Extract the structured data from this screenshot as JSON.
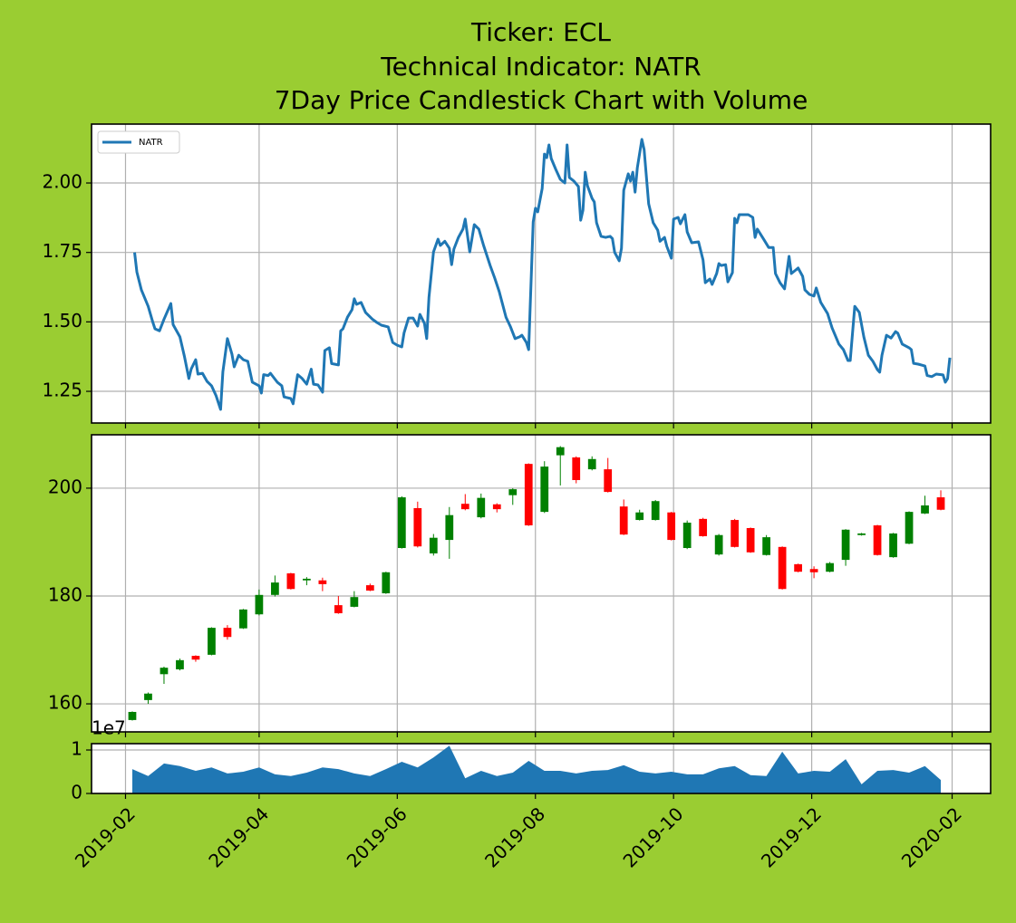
{
  "title": [
    "Ticker: ECL",
    "Technical Indicator: NATR",
    "7Day Price Candlestick Chart with Volume"
  ],
  "chart_data": [
    {
      "type": "line",
      "x": [
        "2019-02-05",
        "2019-02-06",
        "2019-02-08",
        "2019-02-11",
        "2019-02-13",
        "2019-02-14",
        "2019-02-16",
        "2019-02-18",
        "2019-02-21",
        "2019-02-22",
        "2019-02-25",
        "2019-02-27",
        "2019-03-01",
        "2019-03-02",
        "2019-03-04",
        "2019-03-05",
        "2019-03-07",
        "2019-03-09",
        "2019-03-11",
        "2019-03-13",
        "2019-03-15",
        "2019-03-16",
        "2019-03-18",
        "2019-03-20",
        "2019-03-21",
        "2019-03-23",
        "2019-03-25",
        "2019-03-27",
        "2019-03-29",
        "2019-04-01",
        "2019-04-02",
        "2019-04-03",
        "2019-04-05",
        "2019-04-06",
        "2019-04-09",
        "2019-04-11",
        "2019-04-12",
        "2019-04-15",
        "2019-04-16",
        "2019-04-18",
        "2019-04-20",
        "2019-04-22",
        "2019-04-24",
        "2019-04-25",
        "2019-04-27",
        "2019-04-29",
        "2019-04-30",
        "2019-05-02",
        "2019-05-03",
        "2019-05-06",
        "2019-05-07",
        "2019-05-08",
        "2019-05-10",
        "2019-05-12",
        "2019-05-13",
        "2019-05-14",
        "2019-05-16",
        "2019-05-18",
        "2019-05-21",
        "2019-05-23",
        "2019-05-25",
        "2019-05-28",
        "2019-05-30",
        "2019-06-01",
        "2019-06-03",
        "2019-06-04",
        "2019-06-06",
        "2019-06-08",
        "2019-06-10",
        "2019-06-11",
        "2019-06-13",
        "2019-06-14",
        "2019-06-15",
        "2019-06-17",
        "2019-06-19",
        "2019-06-20",
        "2019-06-22",
        "2019-06-24",
        "2019-06-25",
        "2019-06-26",
        "2019-06-28",
        "2019-06-30",
        "2019-07-01",
        "2019-07-03",
        "2019-07-05",
        "2019-07-07",
        "2019-07-09",
        "2019-07-12",
        "2019-07-14",
        "2019-07-16",
        "2019-07-19",
        "2019-07-21",
        "2019-07-23",
        "2019-07-25",
        "2019-07-26",
        "2019-07-28",
        "2019-07-29",
        "2019-07-31",
        "2019-08-01",
        "2019-08-02",
        "2019-08-04",
        "2019-08-05",
        "2019-08-06",
        "2019-08-07",
        "2019-08-08",
        "2019-08-10",
        "2019-08-12",
        "2019-08-14",
        "2019-08-15",
        "2019-08-16",
        "2019-08-18",
        "2019-08-20",
        "2019-08-21",
        "2019-08-22",
        "2019-08-23",
        "2019-08-24",
        "2019-08-26",
        "2019-08-27",
        "2019-08-28",
        "2019-08-30",
        "2019-09-01",
        "2019-09-03",
        "2019-09-04",
        "2019-09-05",
        "2019-09-07",
        "2019-09-08",
        "2019-09-09",
        "2019-09-11",
        "2019-09-12",
        "2019-09-13",
        "2019-09-14",
        "2019-09-15",
        "2019-09-17",
        "2019-09-18",
        "2019-09-20",
        "2019-09-22",
        "2019-09-24",
        "2019-09-25",
        "2019-09-27",
        "2019-09-28",
        "2019-09-30",
        "2019-10-01",
        "2019-10-03",
        "2019-10-04",
        "2019-10-06",
        "2019-10-07",
        "2019-10-09",
        "2019-10-12",
        "2019-10-14",
        "2019-10-15",
        "2019-10-17",
        "2019-10-18",
        "2019-10-20",
        "2019-10-21",
        "2019-10-22",
        "2019-10-24",
        "2019-10-25",
        "2019-10-27",
        "2019-10-28",
        "2019-10-29",
        "2019-10-30",
        "2019-11-03",
        "2019-11-05",
        "2019-11-06",
        "2019-11-07",
        "2019-11-10",
        "2019-11-12",
        "2019-11-14",
        "2019-11-15",
        "2019-11-17",
        "2019-11-19",
        "2019-11-21",
        "2019-11-22",
        "2019-11-24",
        "2019-11-25",
        "2019-11-27",
        "2019-11-28",
        "2019-11-30",
        "2019-12-02",
        "2019-12-03",
        "2019-12-05",
        "2019-12-08",
        "2019-12-10",
        "2019-12-13",
        "2019-12-15",
        "2019-12-17",
        "2019-12-18",
        "2019-12-20",
        "2019-12-22",
        "2019-12-24",
        "2019-12-26",
        "2019-12-28",
        "2019-12-30",
        "2019-12-31",
        "2020-01-01",
        "2020-01-03",
        "2020-01-05",
        "2020-01-07",
        "2020-01-08",
        "2020-01-10",
        "2020-01-13",
        "2020-01-14",
        "2020-01-15",
        "2020-01-17",
        "2020-01-20",
        "2020-01-21",
        "2020-01-23",
        "2020-01-25",
        "2020-01-28",
        "2020-01-29",
        "2020-01-30",
        "2020-01-31"
      ],
      "series": [
        {
          "name": "NATR",
          "color": "#1f77b4",
          "values": [
            1.75,
            1.68,
            1.615,
            1.556,
            1.5,
            1.475,
            1.468,
            1.51,
            1.566,
            1.49,
            1.446,
            1.377,
            1.296,
            1.33,
            1.364,
            1.312,
            1.315,
            1.286,
            1.27,
            1.234,
            1.185,
            1.32,
            1.44,
            1.384,
            1.338,
            1.38,
            1.364,
            1.358,
            1.283,
            1.27,
            1.244,
            1.31,
            1.307,
            1.315,
            1.283,
            1.27,
            1.23,
            1.224,
            1.205,
            1.31,
            1.296,
            1.276,
            1.33,
            1.276,
            1.273,
            1.247,
            1.397,
            1.407,
            1.35,
            1.345,
            1.468,
            1.475,
            1.517,
            1.544,
            1.583,
            1.563,
            1.57,
            1.534,
            1.51,
            1.498,
            1.488,
            1.482,
            1.426,
            1.416,
            1.41,
            1.46,
            1.514,
            1.514,
            1.485,
            1.527,
            1.495,
            1.44,
            1.589,
            1.752,
            1.798,
            1.775,
            1.79,
            1.765,
            1.706,
            1.762,
            1.804,
            1.834,
            1.87,
            1.752,
            1.85,
            1.834,
            1.778,
            1.703,
            1.658,
            1.609,
            1.517,
            1.482,
            1.44,
            1.446,
            1.452,
            1.426,
            1.4,
            1.86,
            1.909,
            1.896,
            1.98,
            2.104,
            2.091,
            2.137,
            2.088,
            2.049,
            2.013,
            2.0,
            2.137,
            2.02,
            2.007,
            1.987,
            1.866,
            1.902,
            2.039,
            1.99,
            1.945,
            1.932,
            1.857,
            1.808,
            1.804,
            1.808,
            1.8,
            1.75,
            1.72,
            1.765,
            1.974,
            2.033,
            2.007,
            2.039,
            1.967,
            2.055,
            2.157,
            2.12,
            1.925,
            1.857,
            1.83,
            1.79,
            1.804,
            1.772,
            1.729,
            1.87,
            1.876,
            1.853,
            1.886,
            1.824,
            1.785,
            1.788,
            1.723,
            1.641,
            1.654,
            1.635,
            1.674,
            1.71,
            1.703,
            1.706,
            1.644,
            1.677,
            1.873,
            1.857,
            1.886,
            1.886,
            1.876,
            1.804,
            1.834,
            1.795,
            1.768,
            1.768,
            1.674,
            1.641,
            1.619,
            1.736,
            1.674,
            1.687,
            1.694,
            1.664,
            1.615,
            1.599,
            1.593,
            1.622,
            1.57,
            1.53,
            1.478,
            1.42,
            1.4,
            1.361,
            1.361,
            1.556,
            1.534,
            1.446,
            1.38,
            1.358,
            1.328,
            1.319,
            1.38,
            1.452,
            1.442,
            1.465,
            1.459,
            1.42,
            1.407,
            1.4,
            1.351,
            1.348,
            1.341,
            1.307,
            1.303,
            1.312,
            1.309,
            1.283,
            1.296,
            1.371
          ]
        }
      ],
      "ylim": [
        1.136,
        2.212
      ],
      "yticks": [
        {
          "value": 1.25,
          "label": "1.25"
        },
        {
          "value": 1.5,
          "label": "1.50"
        },
        {
          "value": 1.75,
          "label": "1.75"
        },
        {
          "value": 2,
          "label": "2.00"
        }
      ],
      "grid": true,
      "legend": "upper left"
    },
    {
      "type": "candlestick",
      "x": [
        "2019-02-04",
        "2019-02-11",
        "2019-02-18",
        "2019-02-25",
        "2019-03-04",
        "2019-03-11",
        "2019-03-18",
        "2019-03-25",
        "2019-04-01",
        "2019-04-08",
        "2019-04-15",
        "2019-04-22",
        "2019-04-29",
        "2019-05-06",
        "2019-05-13",
        "2019-05-20",
        "2019-05-27",
        "2019-06-03",
        "2019-06-10",
        "2019-06-17",
        "2019-06-24",
        "2019-07-01",
        "2019-07-08",
        "2019-07-15",
        "2019-07-22",
        "2019-07-29",
        "2019-08-05",
        "2019-08-12",
        "2019-08-19",
        "2019-08-26",
        "2019-09-02",
        "2019-09-09",
        "2019-09-16",
        "2019-09-23",
        "2019-09-30",
        "2019-10-07",
        "2019-10-14",
        "2019-10-21",
        "2019-10-28",
        "2019-11-04",
        "2019-11-11",
        "2019-11-18",
        "2019-11-25",
        "2019-12-02",
        "2019-12-09",
        "2019-12-16",
        "2019-12-23",
        "2019-12-30",
        "2020-01-06",
        "2020-01-13",
        "2020-01-20",
        "2020-01-27"
      ],
      "open": [
        157.0,
        160.7,
        165.5,
        166.4,
        168.9,
        169.1,
        174.1,
        174.0,
        176.6,
        180.2,
        184.2,
        182.9,
        182.9,
        178.3,
        178.0,
        182.0,
        180.5,
        188.9,
        196.3,
        187.9,
        190.4,
        197.1,
        194.6,
        197.0,
        198.7,
        204.5,
        195.6,
        206.1,
        205.7,
        203.5,
        203.5,
        196.6,
        194.1,
        194.1,
        195.5,
        188.9,
        194.3,
        187.7,
        194.1,
        192.6,
        187.6,
        189.1,
        185.9,
        185.0,
        184.5,
        186.7,
        191.3,
        193.1,
        187.2,
        189.7,
        195.3,
        198.3
      ],
      "high": [
        158.6,
        162.1,
        166.9,
        168.4,
        169.0,
        174.2,
        174.6,
        177.6,
        181.2,
        183.8,
        184.3,
        183.5,
        183.4,
        180.0,
        180.9,
        182.3,
        184.5,
        198.5,
        197.5,
        191.5,
        196.5,
        198.9,
        199.0,
        197.2,
        200.0,
        204.6,
        205.0,
        207.8,
        205.9,
        205.9,
        205.6,
        197.9,
        196.0,
        197.8,
        195.6,
        194.0,
        194.5,
        191.5,
        194.3,
        192.7,
        191.3,
        189.2,
        186.0,
        185.5,
        186.3,
        192.4,
        191.7,
        193.2,
        191.7,
        195.7,
        198.6,
        199.6
      ],
      "low": [
        156.9,
        160.0,
        163.7,
        166.2,
        167.8,
        169.0,
        171.9,
        173.9,
        176.4,
        179.9,
        181.2,
        182.0,
        180.9,
        176.7,
        177.9,
        180.9,
        180.4,
        188.8,
        189.0,
        187.5,
        186.9,
        195.9,
        194.4,
        195.5,
        196.9,
        193.0,
        195.4,
        200.5,
        200.9,
        203.3,
        199.2,
        191.3,
        194.0,
        194.0,
        190.3,
        188.7,
        191.0,
        187.5,
        189.0,
        188.0,
        187.5,
        181.2,
        184.4,
        183.3,
        184.4,
        185.6,
        191.2,
        187.5,
        187.1,
        189.6,
        195.2,
        195.9
      ],
      "close": [
        158.5,
        161.9,
        166.7,
        168.1,
        168.2,
        174.1,
        172.4,
        177.5,
        180.2,
        182.5,
        181.3,
        183.2,
        182.2,
        176.8,
        179.8,
        181.0,
        184.4,
        198.3,
        189.2,
        190.8,
        195.0,
        196.1,
        198.2,
        196.1,
        199.8,
        193.1,
        204.0,
        207.6,
        201.5,
        205.4,
        199.3,
        191.4,
        195.5,
        197.6,
        190.4,
        193.6,
        191.1,
        191.3,
        189.1,
        188.1,
        190.9,
        181.3,
        184.5,
        184.4,
        186.1,
        192.3,
        191.6,
        187.6,
        191.6,
        195.6,
        196.8,
        196.0
      ],
      "up_color": "green",
      "down_color": "red",
      "ylim": [
        154.8,
        209.9
      ],
      "yticks": [
        160,
        180,
        200
      ],
      "grid": true
    },
    {
      "type": "area",
      "x": [
        "2019-02-04",
        "2019-02-11",
        "2019-02-18",
        "2019-02-25",
        "2019-03-04",
        "2019-03-11",
        "2019-03-18",
        "2019-03-25",
        "2019-04-01",
        "2019-04-08",
        "2019-04-15",
        "2019-04-22",
        "2019-04-29",
        "2019-05-06",
        "2019-05-13",
        "2019-05-20",
        "2019-05-27",
        "2019-06-03",
        "2019-06-10",
        "2019-06-17",
        "2019-06-24",
        "2019-07-01",
        "2019-07-08",
        "2019-07-15",
        "2019-07-22",
        "2019-07-29",
        "2019-08-05",
        "2019-08-12",
        "2019-08-19",
        "2019-08-26",
        "2019-09-02",
        "2019-09-09",
        "2019-09-16",
        "2019-09-23",
        "2019-09-30",
        "2019-10-07",
        "2019-10-14",
        "2019-10-21",
        "2019-10-28",
        "2019-11-04",
        "2019-11-11",
        "2019-11-18",
        "2019-11-25",
        "2019-12-02",
        "2019-12-09",
        "2019-12-16",
        "2019-12-23",
        "2019-12-30",
        "2020-01-06",
        "2020-01-13",
        "2020-01-20",
        "2020-01-27"
      ],
      "values": [
        5600000,
        4000000,
        6900000,
        6300000,
        5200000,
        6000000,
        4600000,
        5000000,
        6000000,
        4400000,
        4000000,
        4800000,
        6000000,
        5600000,
        4600000,
        4000000,
        5600000,
        7300000,
        6000000,
        8300000,
        11000000,
        3500000,
        5200000,
        4000000,
        4800000,
        7500000,
        5200000,
        5200000,
        4600000,
        5200000,
        5400000,
        6500000,
        5000000,
        4600000,
        5000000,
        4400000,
        4400000,
        5800000,
        6300000,
        4200000,
        4000000,
        9600000,
        4600000,
        5200000,
        5000000,
        7900000,
        2100000,
        5200000,
        5400000,
        4800000,
        6300000,
        3100000
      ],
      "color": "#1f77b4",
      "xlim": [
        "2019-01-17",
        "2020-02-18"
      ],
      "xticks": [
        "2019-02",
        "2019-04",
        "2019-06",
        "2019-08",
        "2019-10",
        "2019-12",
        "2020-02"
      ],
      "ylim": [
        0,
        11460000
      ],
      "yticks": [
        0,
        {
          "value": 10000000,
          "label": "1"
        }
      ],
      "offset_label": "1e7",
      "grid": true
    }
  ]
}
